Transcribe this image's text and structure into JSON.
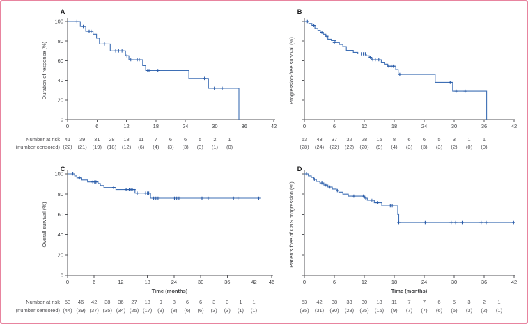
{
  "colors": {
    "curve": "#3e6fb5",
    "censor": "#2a5ca9",
    "axis": "#55565a",
    "tick_text": "#3f4043",
    "risk_text": "#515155",
    "panel_letter": "#1c1c1e",
    "border_pink": "#e8849f"
  },
  "risk_header": {
    "line1": "Number at risk",
    "line2": "(number censored)"
  },
  "chart_data": [
    {
      "type": "line",
      "subtype": "kaplan-meier",
      "panel": "A",
      "ylabel": "Duration of response (%)",
      "xlabel": "",
      "xlim": [
        0,
        42
      ],
      "ylim": [
        0,
        100
      ],
      "xticks": [
        0,
        6,
        12,
        18,
        24,
        30,
        36,
        42
      ],
      "yticks": [
        0,
        20,
        40,
        60,
        80,
        100
      ],
      "show_ytick_labels": true,
      "start": [
        0,
        100
      ],
      "events": [
        [
          2.6,
          95
        ],
        [
          3.7,
          90
        ],
        [
          5.2,
          87
        ],
        [
          5.9,
          83
        ],
        [
          6.5,
          77
        ],
        [
          8.7,
          70
        ],
        [
          11.8,
          65
        ],
        [
          12.5,
          61
        ],
        [
          15.3,
          55
        ],
        [
          15.9,
          50
        ],
        [
          24.7,
          42
        ],
        [
          28.7,
          32
        ],
        [
          34.9,
          0
        ]
      ],
      "end_time": 34.9,
      "censors": [
        [
          1.9,
          100
        ],
        [
          3.2,
          95
        ],
        [
          4.4,
          90
        ],
        [
          4.8,
          90
        ],
        [
          7.5,
          77
        ],
        [
          9.8,
          70
        ],
        [
          10.4,
          70
        ],
        [
          10.9,
          70
        ],
        [
          11.2,
          70
        ],
        [
          12.1,
          65
        ],
        [
          12.8,
          61
        ],
        [
          13.1,
          61
        ],
        [
          14.2,
          61
        ],
        [
          14.6,
          61
        ],
        [
          16.3,
          50
        ],
        [
          16.6,
          50
        ],
        [
          18.4,
          50
        ],
        [
          27.9,
          42
        ],
        [
          29.9,
          32
        ],
        [
          31.5,
          32
        ]
      ],
      "risk_times": [
        0,
        3,
        6,
        9,
        12,
        15,
        18,
        21,
        24,
        27,
        30,
        33
      ],
      "number_at_risk": [
        41,
        39,
        31,
        28,
        18,
        11,
        7,
        6,
        6,
        5,
        2,
        1
      ],
      "number_censored": [
        "(22)",
        "(21)",
        "(19)",
        "(18)",
        "(12)",
        "(6)",
        "(4)",
        "(3)",
        "(3)",
        "(3)",
        "(1)",
        "(0)"
      ]
    },
    {
      "type": "line",
      "subtype": "kaplan-meier",
      "panel": "B",
      "ylabel": "Progression-free survival (%)",
      "xlabel": "",
      "xlim": [
        0,
        42
      ],
      "ylim": [
        0,
        100
      ],
      "xticks": [
        0,
        6,
        12,
        18,
        24,
        30,
        36,
        42
      ],
      "yticks": [
        0,
        20,
        40,
        60,
        80,
        100
      ],
      "show_ytick_labels": false,
      "start": [
        0,
        100
      ],
      "events": [
        [
          0.9,
          98
        ],
        [
          1.5,
          96
        ],
        [
          2.1,
          93
        ],
        [
          2.7,
          91
        ],
        [
          3.2,
          89
        ],
        [
          3.8,
          87
        ],
        [
          4.3,
          85
        ],
        [
          4.7,
          82
        ],
        [
          5.4,
          80.5
        ],
        [
          6.3,
          78.5
        ],
        [
          7.0,
          76.5
        ],
        [
          7.7,
          74.5
        ],
        [
          8.4,
          70.5
        ],
        [
          9.8,
          68.5
        ],
        [
          10.7,
          67
        ],
        [
          12.4,
          65
        ],
        [
          13.0,
          63.5
        ],
        [
          13.5,
          61
        ],
        [
          15.4,
          58.5
        ],
        [
          16.0,
          56.5
        ],
        [
          16.7,
          54.5
        ],
        [
          18.3,
          51
        ],
        [
          18.8,
          46
        ],
        [
          26.2,
          38
        ],
        [
          29.7,
          29
        ],
        [
          36.5,
          0
        ]
      ],
      "end_time": 36.5,
      "censors": [
        [
          0.6,
          100
        ],
        [
          1.9,
          96
        ],
        [
          3.5,
          89
        ],
        [
          4.5,
          85
        ],
        [
          6.0,
          78.5
        ],
        [
          11.4,
          67
        ],
        [
          11.8,
          67
        ],
        [
          12.2,
          67
        ],
        [
          13.2,
          63.5
        ],
        [
          13.7,
          61
        ],
        [
          14.2,
          61
        ],
        [
          14.9,
          61
        ],
        [
          16.9,
          54.5
        ],
        [
          17.4,
          54.5
        ],
        [
          17.8,
          54.5
        ],
        [
          19.1,
          46
        ],
        [
          29.2,
          38
        ],
        [
          30.4,
          29
        ],
        [
          32.2,
          29
        ]
      ],
      "risk_times": [
        0,
        3,
        6,
        9,
        12,
        15,
        18,
        21,
        24,
        27,
        30,
        33,
        36
      ],
      "number_at_risk": [
        53,
        43,
        37,
        32,
        28,
        15,
        8,
        6,
        6,
        5,
        3,
        1,
        1
      ],
      "number_censored": [
        "(28)",
        "(24)",
        "(22)",
        "(22)",
        "(20)",
        "(9)",
        "(4)",
        "(3)",
        "(3)",
        "(3)",
        "(2)",
        "(0)",
        "(0)"
      ]
    },
    {
      "type": "line",
      "subtype": "kaplan-meier",
      "panel": "C",
      "ylabel": "Overall survival (%)",
      "xlabel": "Time (months)",
      "xlim": [
        0,
        46
      ],
      "ylim": [
        0,
        100
      ],
      "xticks": [
        0,
        6,
        12,
        18,
        24,
        30,
        36,
        42,
        46
      ],
      "yticks": [
        0,
        20,
        40,
        60,
        80,
        100
      ],
      "show_ytick_labels": true,
      "start": [
        0,
        100
      ],
      "events": [
        [
          1.6,
          98
        ],
        [
          2.1,
          96
        ],
        [
          3.2,
          94
        ],
        [
          4.5,
          92
        ],
        [
          6.9,
          90.5
        ],
        [
          7.4,
          88.5
        ],
        [
          8.2,
          86.5
        ],
        [
          10.9,
          84.5
        ],
        [
          15.2,
          81
        ],
        [
          18.7,
          76
        ]
      ],
      "end_time": 43.4,
      "censors": [
        [
          1.2,
          100
        ],
        [
          2.7,
          96
        ],
        [
          5.7,
          92
        ],
        [
          6.1,
          92
        ],
        [
          6.4,
          92
        ],
        [
          10.4,
          86.5
        ],
        [
          13.2,
          84.5
        ],
        [
          13.9,
          84.5
        ],
        [
          14.3,
          84.5
        ],
        [
          14.6,
          84.5
        ],
        [
          15.0,
          84.5
        ],
        [
          15.7,
          81
        ],
        [
          17.6,
          81
        ],
        [
          18.0,
          81
        ],
        [
          18.3,
          81
        ],
        [
          19.4,
          76
        ],
        [
          19.9,
          76
        ],
        [
          20.4,
          76
        ],
        [
          24.1,
          76
        ],
        [
          24.6,
          76
        ],
        [
          25.1,
          76
        ],
        [
          30.3,
          76
        ],
        [
          31.7,
          76
        ],
        [
          37.4,
          76
        ],
        [
          38.4,
          76
        ],
        [
          43.1,
          76
        ]
      ],
      "risk_times": [
        0,
        3,
        6,
        9,
        12,
        15,
        18,
        21,
        24,
        27,
        30,
        33,
        36,
        39,
        42
      ],
      "number_at_risk": [
        53,
        46,
        42,
        38,
        36,
        27,
        18,
        9,
        8,
        6,
        6,
        3,
        3,
        1,
        1
      ],
      "number_censored": [
        "(44)",
        "(39)",
        "(37)",
        "(35)",
        "(34)",
        "(25)",
        "(17)",
        "(9)",
        "(8)",
        "(6)",
        "(6)",
        "(3)",
        "(3)",
        "(1)",
        "(1)"
      ]
    },
    {
      "type": "line",
      "subtype": "kaplan-meier",
      "panel": "D",
      "ylabel": "Patients free of CNS progression (%)",
      "xlabel": "Time (months)",
      "xlim": [
        0,
        42
      ],
      "ylim": [
        0,
        100
      ],
      "xticks": [
        0,
        6,
        12,
        18,
        24,
        30,
        36,
        42
      ],
      "yticks": [
        0,
        20,
        40,
        60,
        80,
        100
      ],
      "show_ytick_labels": false,
      "start": [
        0,
        100
      ],
      "events": [
        [
          0.8,
          98
        ],
        [
          1.4,
          96.5
        ],
        [
          1.9,
          94.5
        ],
        [
          2.4,
          92.5
        ],
        [
          3.1,
          91
        ],
        [
          3.9,
          89
        ],
        [
          4.7,
          87
        ],
        [
          5.6,
          85
        ],
        [
          6.4,
          83.5
        ],
        [
          6.9,
          82
        ],
        [
          7.7,
          80
        ],
        [
          8.8,
          78
        ],
        [
          12.1,
          76
        ],
        [
          12.6,
          74
        ],
        [
          14.0,
          71.5
        ],
        [
          15.5,
          68.5
        ],
        [
          18.7,
          60
        ],
        [
          18.9,
          52
        ]
      ],
      "end_time": 42.0,
      "censors": [
        [
          0.4,
          100
        ],
        [
          2.0,
          94.5
        ],
        [
          3.5,
          91
        ],
        [
          4.3,
          89
        ],
        [
          5.1,
          87
        ],
        [
          6.6,
          83.5
        ],
        [
          9.9,
          78
        ],
        [
          11.8,
          78
        ],
        [
          12.3,
          76
        ],
        [
          13.4,
          74
        ],
        [
          13.7,
          74
        ],
        [
          14.6,
          71.5
        ],
        [
          17.2,
          68.5
        ],
        [
          17.6,
          68.5
        ],
        [
          18.9,
          52
        ],
        [
          24.2,
          52
        ],
        [
          29.4,
          52
        ],
        [
          30.3,
          52
        ],
        [
          31.6,
          52
        ],
        [
          35.4,
          52
        ],
        [
          36.4,
          52
        ],
        [
          41.9,
          52
        ]
      ],
      "risk_times": [
        0,
        3,
        6,
        9,
        12,
        15,
        18,
        21,
        24,
        27,
        30,
        33,
        36,
        39
      ],
      "number_at_risk": [
        53,
        42,
        38,
        33,
        30,
        18,
        11,
        7,
        7,
        6,
        5,
        3,
        2,
        1
      ],
      "number_censored": [
        "(35)",
        "(31)",
        "(30)",
        "(28)",
        "(25)",
        "(15)",
        "(9)",
        "(7)",
        "(7)",
        "(6)",
        "(5)",
        "(3)",
        "(2)",
        "(1)"
      ]
    }
  ]
}
